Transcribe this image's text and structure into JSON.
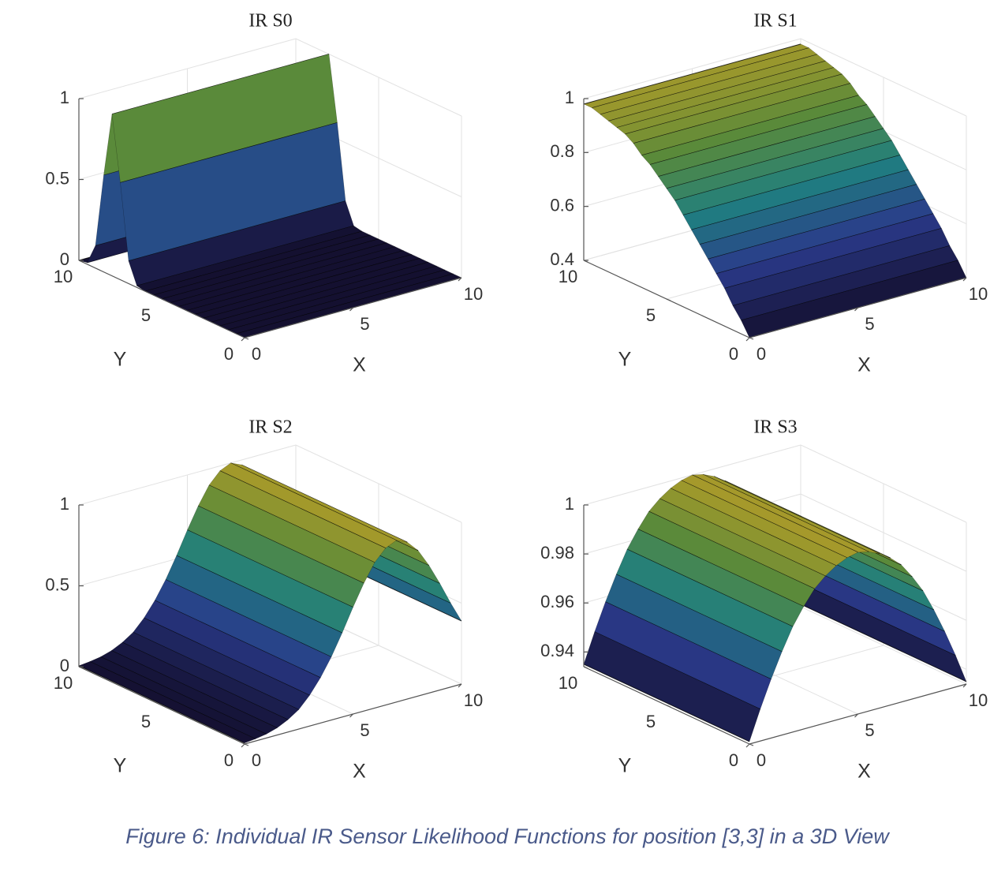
{
  "chart_data": [
    {
      "type": "surface",
      "title": "IR S0",
      "xlabel": "X",
      "ylabel": "Y",
      "xlim": [
        0,
        10
      ],
      "ylim": [
        0,
        10
      ],
      "zlim": [
        0,
        1
      ],
      "xticks": [
        0,
        5,
        10
      ],
      "yticks": [
        0,
        5,
        10
      ],
      "zticks": [
        0,
        0.5,
        1
      ],
      "grid": true,
      "profile_axis": "y",
      "profile_at": [
        0,
        0.5,
        1,
        1.5,
        2,
        2.5,
        3,
        3.5,
        4,
        4.5,
        5,
        5.5,
        6,
        6.5,
        7,
        7.5,
        8,
        8.5,
        9,
        9.5,
        10
      ],
      "profile_values": [
        0,
        0,
        0,
        0,
        0,
        0,
        0,
        0,
        0,
        0,
        0,
        0,
        0,
        0.01,
        0.14,
        0.6,
        1,
        0.6,
        0.14,
        0.01,
        0
      ]
    },
    {
      "type": "surface",
      "title": "IR S1",
      "xlabel": "X",
      "ylabel": "Y",
      "xlim": [
        0,
        10
      ],
      "ylim": [
        0,
        10
      ],
      "zlim": [
        0.4,
        1
      ],
      "xticks": [
        0,
        5,
        10
      ],
      "yticks": [
        0,
        5,
        10
      ],
      "zticks": [
        0.4,
        0.6,
        0.8,
        1
      ],
      "grid": true,
      "profile_axis": "y",
      "profile_at": [
        0,
        0.5,
        1,
        1.5,
        2,
        2.5,
        3,
        3.5,
        4,
        4.5,
        5,
        5.5,
        6,
        6.5,
        7,
        7.5,
        8,
        8.5,
        9,
        9.5,
        10
      ],
      "profile_values": [
        0.4,
        0.45,
        0.49,
        0.54,
        0.58,
        0.62,
        0.66,
        0.7,
        0.74,
        0.78,
        0.81,
        0.84,
        0.87,
        0.89,
        0.92,
        0.94,
        0.95,
        0.96,
        0.97,
        0.98,
        0.98
      ]
    },
    {
      "type": "surface",
      "title": "IR S2",
      "xlabel": "X",
      "ylabel": "Y",
      "xlim": [
        0,
        10
      ],
      "ylim": [
        0,
        10
      ],
      "zlim": [
        0,
        1
      ],
      "xticks": [
        0,
        5,
        10
      ],
      "yticks": [
        0,
        5,
        10
      ],
      "zticks": [
        0,
        0.5,
        1
      ],
      "grid": true,
      "profile_axis": "x",
      "profile_at": [
        0,
        0.5,
        1,
        1.5,
        2,
        2.5,
        3,
        3.5,
        4,
        4.5,
        5,
        5.5,
        6,
        6.5,
        7,
        7.5,
        8,
        8.5,
        9,
        9.5,
        10
      ],
      "profile_values": [
        0.006,
        0.013,
        0.024,
        0.044,
        0.076,
        0.12,
        0.19,
        0.28,
        0.39,
        0.52,
        0.66,
        0.79,
        0.9,
        0.97,
        1,
        0.97,
        0.9,
        0.79,
        0.66,
        0.52,
        0.39
      ]
    },
    {
      "type": "surface",
      "title": "IR S3",
      "xlabel": "X",
      "ylabel": "Y",
      "xlim": [
        0,
        10
      ],
      "ylim": [
        0,
        10
      ],
      "zlim": [
        0.934,
        1
      ],
      "xticks": [
        0,
        5,
        10
      ],
      "yticks": [
        0,
        5,
        10
      ],
      "zticks": [
        0.94,
        0.96,
        0.98,
        1
      ],
      "grid": true,
      "profile_axis": "x",
      "profile_at": [
        0,
        0.5,
        1,
        1.5,
        2,
        2.5,
        3,
        3.5,
        4,
        4.5,
        5,
        5.5,
        6,
        6.5,
        7,
        7.5,
        8,
        8.5,
        9,
        9.5,
        10
      ],
      "profile_values": [
        0.935,
        0.947,
        0.958,
        0.968,
        0.977,
        0.984,
        0.99,
        0.994,
        0.997,
        0.999,
        1,
        0.999,
        0.997,
        0.994,
        0.99,
        0.984,
        0.977,
        0.968,
        0.958,
        0.947,
        0.935
      ]
    }
  ],
  "caption": "Figure 6: Individual IR Sensor Likelihood Functions for position [3,3] in a 3D View"
}
